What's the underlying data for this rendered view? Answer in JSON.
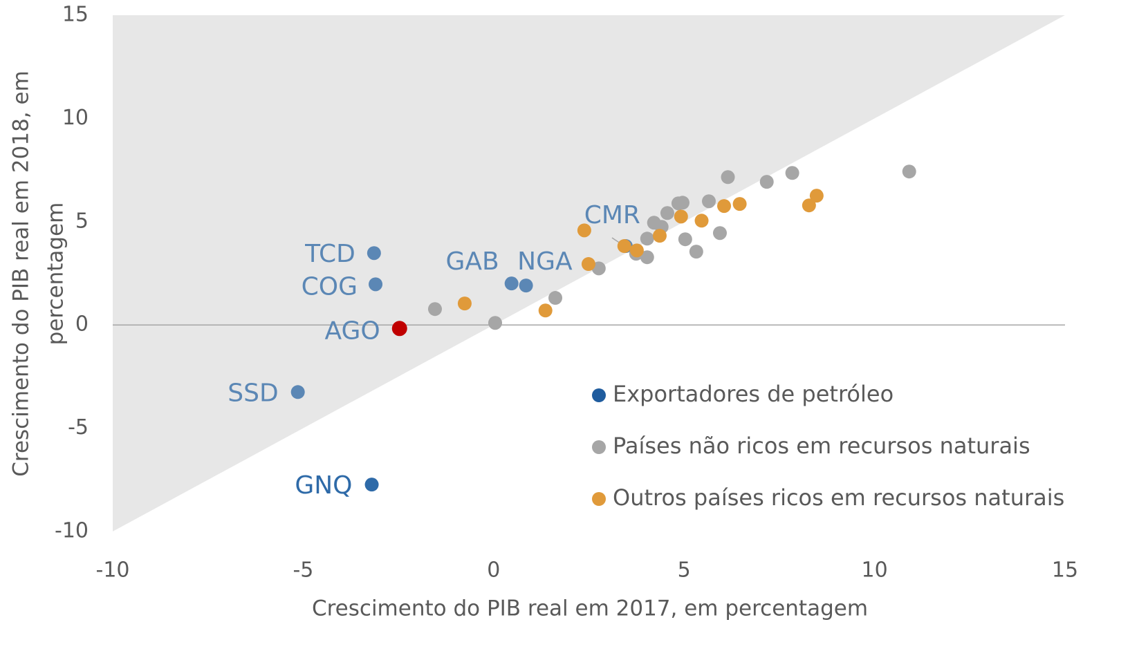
{
  "chart_data": {
    "type": "scatter",
    "xlabel": "Crescimento do PIB real em 2017, em percentagem",
    "ylabel": [
      "Crescimento do PIB real em 2018, em",
      "percentagem"
    ],
    "xlim": [
      -10,
      15
    ],
    "xticks": [
      -10,
      -5,
      0,
      5,
      10,
      15
    ],
    "ylim": [
      -10,
      15
    ],
    "yticks": [
      -10,
      -5,
      0,
      5,
      10,
      15
    ],
    "legend": "lower-right",
    "series": [
      {
        "name": "Exportadores de petróleo",
        "color": "#1f5c9e",
        "colors": [
          "#5b87b5",
          "#5b87b5",
          "#c00000",
          "#5b87b5",
          "#2e6aa8",
          "#5b87b5",
          "#5b87b5",
          "#5b87b5"
        ],
        "point_labels": [
          "TCD",
          "COG",
          "AGO",
          "SSD",
          "GNQ",
          "GAB",
          "NGA",
          "CMR"
        ],
        "x": [
          -3.14,
          -3.1,
          -2.47,
          -5.14,
          -3.2,
          0.47,
          0.85,
          3.47
        ],
        "values": [
          3.48,
          1.97,
          -0.17,
          -3.25,
          -7.73,
          2.01,
          1.91,
          3.82
        ]
      },
      {
        "name": "Países não ricos em recursos naturais",
        "color": "#a6a6a6",
        "x": [
          -1.54,
          0.04,
          1.62,
          2.76,
          3.74,
          4.03,
          4.03,
          4.21,
          4.41,
          4.56,
          4.85,
          4.96,
          5.03,
          5.32,
          5.65,
          5.94,
          6.15,
          7.17,
          7.84,
          10.91
        ],
        "values": [
          0.77,
          0.1,
          1.31,
          2.74,
          3.45,
          3.28,
          4.18,
          4.95,
          4.75,
          5.42,
          5.89,
          5.92,
          4.15,
          3.55,
          5.99,
          4.45,
          7.16,
          6.93,
          7.36,
          7.43
        ]
      },
      {
        "name": "Outros países ricos em recursos naturais",
        "color": "#e09a3a",
        "x": [
          2.38,
          -0.76,
          1.36,
          2.49,
          3.43,
          3.76,
          4.36,
          4.92,
          5.46,
          6.05,
          6.46,
          8.28,
          8.48
        ],
        "values": [
          4.58,
          1.04,
          0.7,
          2.95,
          3.82,
          3.61,
          4.32,
          5.25,
          5.05,
          5.76,
          5.86,
          5.79,
          6.26
        ]
      }
    ]
  }
}
